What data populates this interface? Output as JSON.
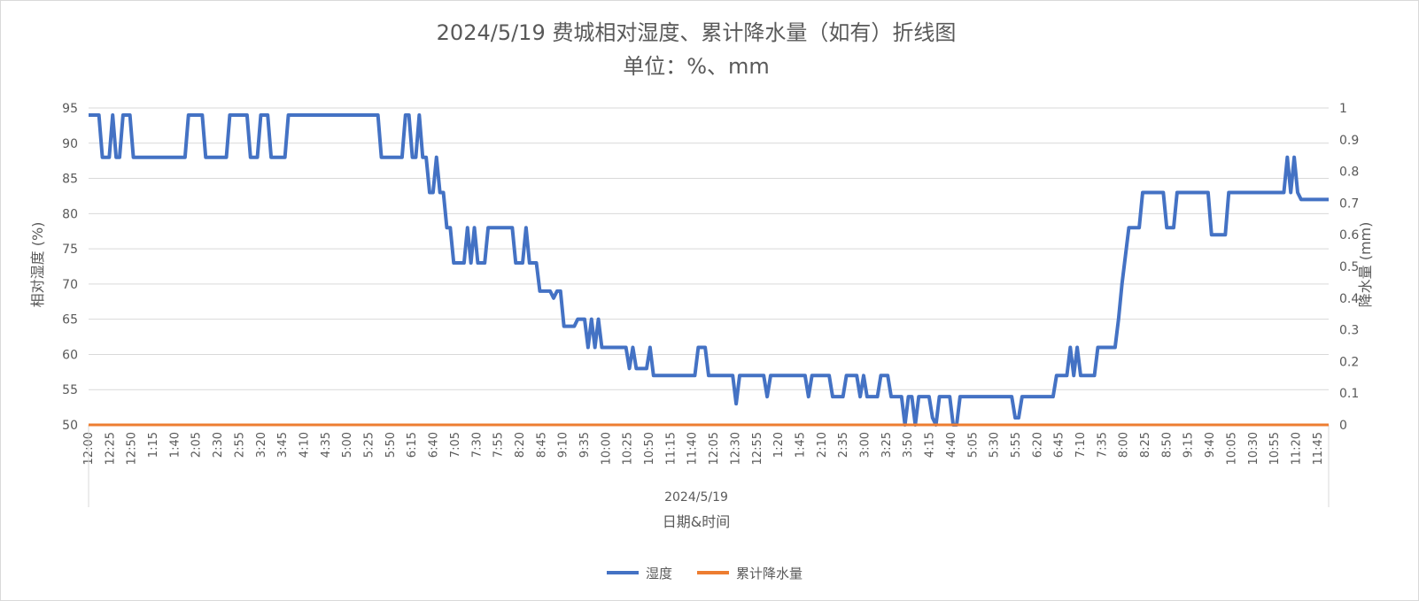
{
  "chart_data": {
    "type": "line",
    "title": "2024/5/19 费城相对湿度、累计降水量（如有）折线图",
    "subtitle": "单位：%、mm",
    "xlabel": "日期&时间",
    "x_group_label": "2024/5/19",
    "ylabel_left": "相对湿度 (%)",
    "ylabel_right": "降水量 (mm)",
    "ylim_left": [
      50,
      95
    ],
    "ylim_right": [
      0,
      1
    ],
    "yticks_left": [
      "50",
      "55",
      "60",
      "65",
      "70",
      "75",
      "80",
      "85",
      "90",
      "95"
    ],
    "yticks_right": [
      "0",
      "0.1",
      "0.2",
      "0.3",
      "0.4",
      "0.5",
      "0.6",
      "0.7",
      "0.8",
      "0.9",
      "1"
    ],
    "x_tick_labels": [
      "12:00",
      "12:25",
      "12:50",
      "1:15",
      "1:40",
      "2:05",
      "2:30",
      "2:55",
      "3:20",
      "3:45",
      "4:10",
      "4:35",
      "5:00",
      "5:25",
      "5:50",
      "6:15",
      "6:40",
      "7:05",
      "7:30",
      "7:55",
      "8:20",
      "8:45",
      "9:10",
      "9:35",
      "10:00",
      "10:25",
      "10:50",
      "11:15",
      "11:40",
      "12:05",
      "12:30",
      "12:55",
      "1:20",
      "1:45",
      "2:10",
      "2:35",
      "3:00",
      "3:25",
      "3:50",
      "4:15",
      "4:40",
      "5:05",
      "5:30",
      "5:55",
      "6:20",
      "6:45",
      "7:10",
      "7:35",
      "8:00",
      "8:25",
      "8:50",
      "9:15",
      "9:40",
      "10:05",
      "10:30",
      "10:55",
      "11:20",
      "11:45"
    ],
    "grid": true,
    "legend_position": "bottom",
    "colors": {
      "humidity": "#4472c4",
      "precip": "#ed7d31"
    },
    "series": [
      {
        "name": "湿度",
        "axis": "left",
        "values": [
          94,
          94,
          94,
          94,
          88,
          88,
          88,
          94,
          88,
          88,
          94,
          94,
          94,
          88,
          88,
          88,
          88,
          88,
          88,
          88,
          88,
          88,
          88,
          88,
          88,
          88,
          88,
          88,
          88,
          94,
          94,
          94,
          94,
          94,
          88,
          88,
          88,
          88,
          88,
          88,
          88,
          94,
          94,
          94,
          94,
          94,
          94,
          88,
          88,
          88,
          94,
          94,
          94,
          88,
          88,
          88,
          88,
          88,
          94,
          94,
          94,
          94,
          94,
          94,
          94,
          94,
          94,
          94,
          94,
          94,
          94,
          94,
          94,
          94,
          94,
          94,
          94,
          94,
          94,
          94,
          94,
          94,
          94,
          94,
          94,
          88,
          88,
          88,
          88,
          88,
          88,
          88,
          94,
          94,
          88,
          88,
          94,
          88,
          88,
          83,
          83,
          88,
          83,
          83,
          78,
          78,
          73,
          73,
          73,
          73,
          78,
          73,
          78,
          73,
          73,
          73,
          78,
          78,
          78,
          78,
          78,
          78,
          78,
          78,
          73,
          73,
          73,
          78,
          73,
          73,
          73,
          69,
          69,
          69,
          69,
          68,
          69,
          69,
          64,
          64,
          64,
          64,
          65,
          65,
          65,
          61,
          65,
          61,
          65,
          61,
          61,
          61,
          61,
          61,
          61,
          61,
          61,
          58,
          61,
          58,
          58,
          58,
          58,
          61,
          57,
          57,
          57,
          57,
          57,
          57,
          57,
          57,
          57,
          57,
          57,
          57,
          57,
          61,
          61,
          61,
          57,
          57,
          57,
          57,
          57,
          57,
          57,
          57,
          53,
          57,
          57,
          57,
          57,
          57,
          57,
          57,
          57,
          54,
          57,
          57,
          57,
          57,
          57,
          57,
          57,
          57,
          57,
          57,
          57,
          54,
          57,
          57,
          57,
          57,
          57,
          57,
          54,
          54,
          54,
          54,
          57,
          57,
          57,
          57,
          54,
          57,
          54,
          54,
          54,
          54,
          57,
          57,
          57,
          54,
          54,
          54,
          54,
          50,
          54,
          54,
          50,
          54,
          54,
          54,
          54,
          51,
          50,
          54,
          54,
          54,
          54,
          50,
          50,
          54,
          54,
          54,
          54,
          54,
          54,
          54,
          54,
          54,
          54,
          54,
          54,
          54,
          54,
          54,
          54,
          51,
          51,
          54,
          54,
          54,
          54,
          54,
          54,
          54,
          54,
          54,
          54,
          57,
          57,
          57,
          57,
          61,
          57,
          61,
          57,
          57,
          57,
          57,
          57,
          61,
          61,
          61,
          61,
          61,
          61,
          65,
          70,
          74,
          78,
          78,
          78,
          78,
          83,
          83,
          83,
          83,
          83,
          83,
          83,
          78,
          78,
          78,
          83,
          83,
          83,
          83,
          83,
          83,
          83,
          83,
          83,
          83,
          77,
          77,
          77,
          77,
          77,
          83,
          83,
          83,
          83,
          83,
          83,
          83,
          83,
          83,
          83,
          83,
          83,
          83,
          83,
          83,
          83,
          83,
          88,
          83,
          88,
          83,
          82,
          82,
          82,
          82,
          82,
          82,
          82,
          82,
          82
        ]
      },
      {
        "name": "累计降水量",
        "axis": "right",
        "values": [
          0,
          0
        ]
      }
    ]
  }
}
